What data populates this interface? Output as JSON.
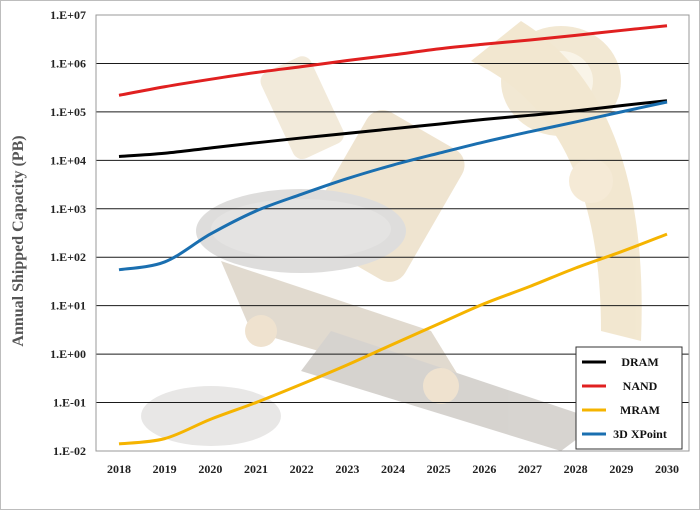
{
  "chart_data": {
    "type": "line",
    "title": "",
    "xlabel": "",
    "ylabel": "Annual Shipped Capacity (PB)",
    "y_scale": "log",
    "ylim": [
      0.01,
      10000000
    ],
    "yticks": [
      "1.E-02",
      "1.E-01",
      "1.E+00",
      "1.E+01",
      "1.E+02",
      "1.E+03",
      "1.E+04",
      "1.E+05",
      "1.E+06",
      "1.E+07"
    ],
    "x": [
      "2018",
      "2019",
      "2020",
      "2021",
      "2022",
      "2023",
      "2024",
      "2025",
      "2026",
      "2027",
      "2028",
      "2029",
      "2030"
    ],
    "grid": "horizontal",
    "legend_position": "bottom-right",
    "background": "faint microscope photograph",
    "series": [
      {
        "name": "DRAM",
        "color": "#000000",
        "values": [
          12000,
          14000,
          18000,
          23000,
          29000,
          36000,
          45000,
          56000,
          70000,
          85000,
          105000,
          135000,
          170000
        ]
      },
      {
        "name": "NAND",
        "color": "#e02020",
        "values": [
          220000,
          330000,
          470000,
          650000,
          860000,
          1150000,
          1500000,
          2000000,
          2500000,
          3050000,
          3800000,
          4800000,
          6000000
        ]
      },
      {
        "name": "MRAM",
        "color": "#f5b400",
        "values": [
          0.014,
          0.018,
          0.045,
          0.1,
          0.24,
          0.6,
          1.6,
          4.2,
          11,
          25,
          60,
          130,
          300
        ]
      },
      {
        "name": "3D XPoint",
        "color": "#1a6fb0",
        "values": [
          55,
          80,
          300,
          900,
          2000,
          4200,
          8000,
          14000,
          24000,
          39000,
          62000,
          100000,
          160000
        ]
      }
    ]
  }
}
